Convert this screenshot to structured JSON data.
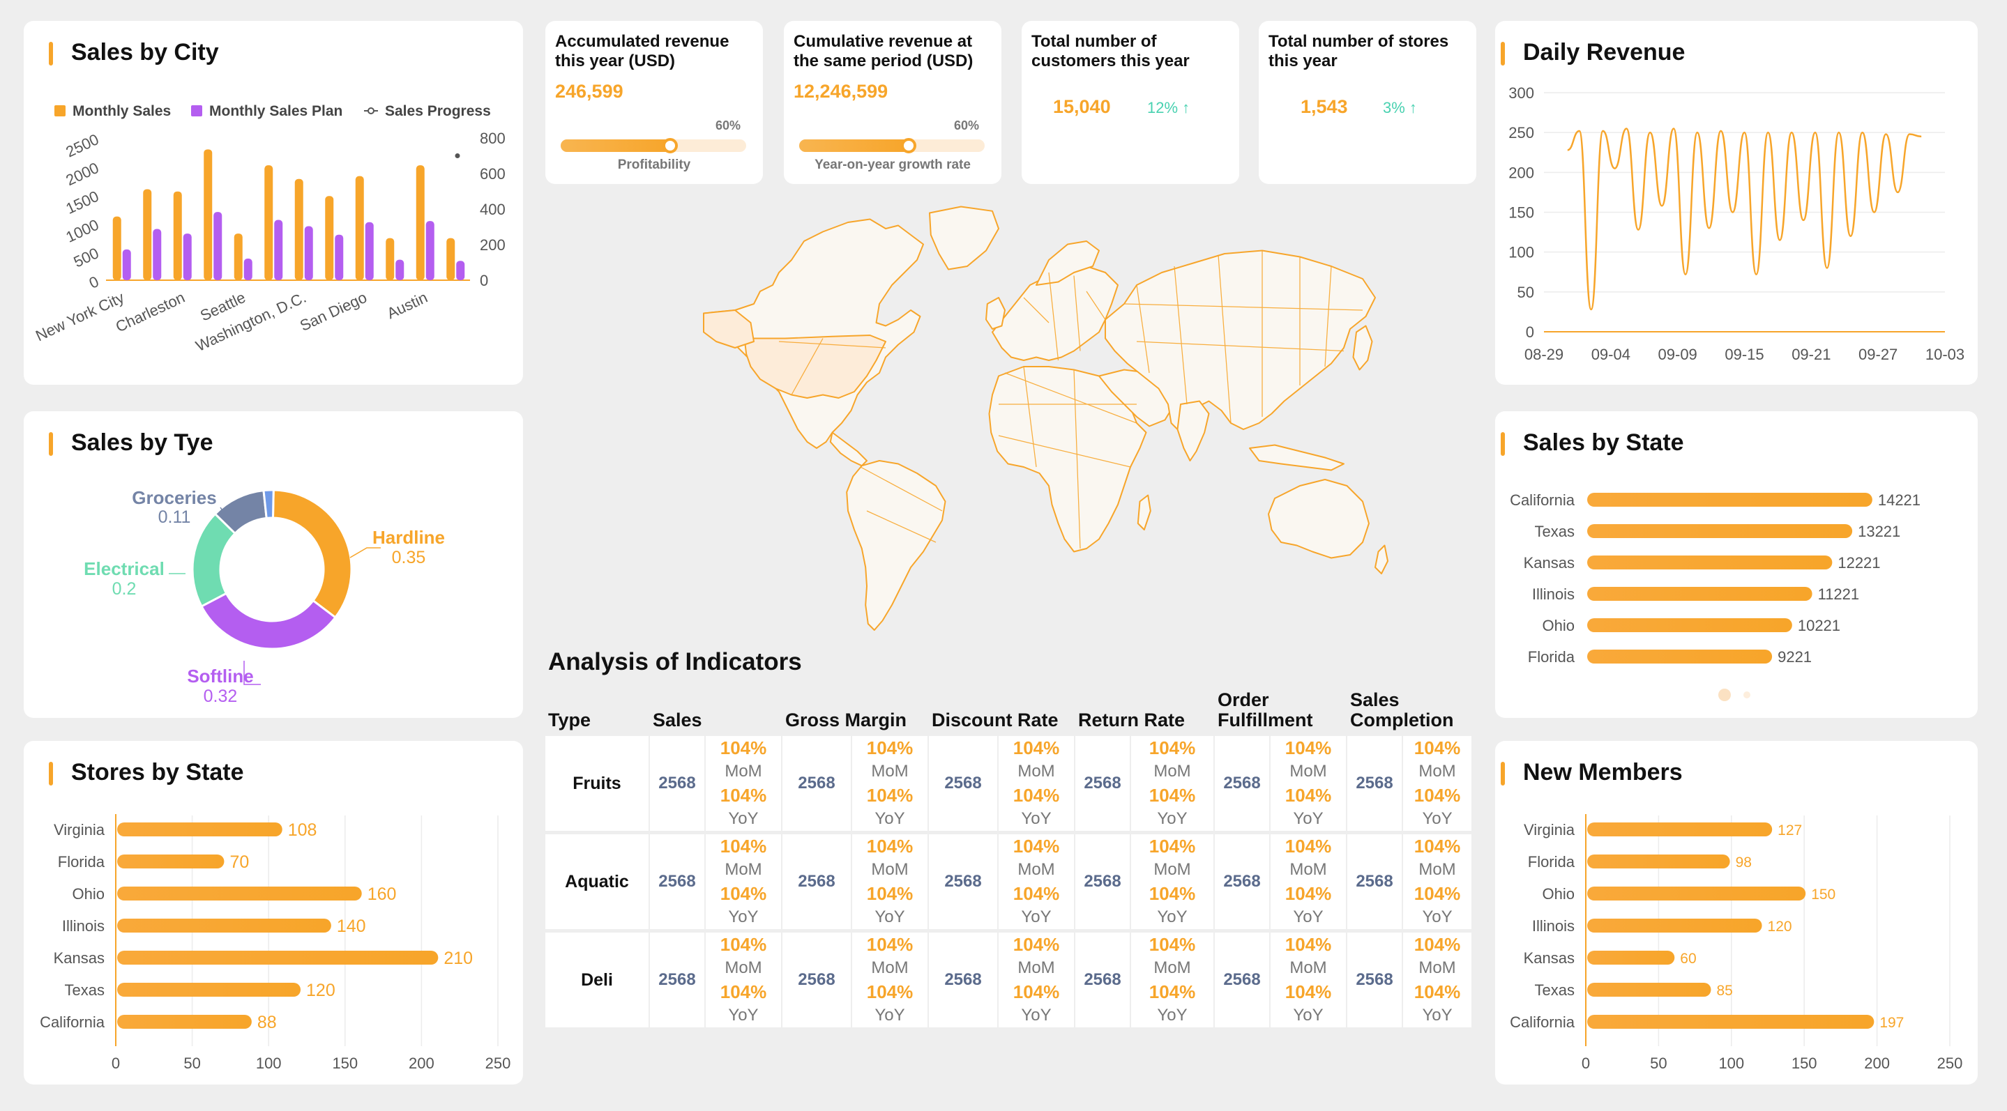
{
  "colors": {
    "accent": "#f7a52a",
    "plan": "#b45ef0",
    "teal": "#48d1b0",
    "slate": "#5b6b8c"
  },
  "sales_by_city": {
    "title": "Sales by City",
    "legend": {
      "monthly_sales": "Monthly Sales",
      "monthly_plan": "Monthly Sales Plan",
      "sales_progress": "Sales Progress"
    },
    "chart_data": {
      "type": "bar",
      "categories": [
        "New York City",
        "",
        "Charleston",
        "",
        "Seattle",
        "",
        "Washington, D.C.",
        "",
        "San Diego",
        "",
        "Austin",
        ""
      ],
      "x_tick_labels": [
        "New York City",
        "Charleston",
        "Seattle",
        "Washington, D.C.",
        "San Diego",
        "Austin"
      ],
      "series": [
        {
          "name": "Monthly Sales",
          "values": [
            1120,
            1600,
            1560,
            2300,
            820,
            2020,
            1780,
            1480,
            1830,
            740,
            2020,
            740
          ]
        },
        {
          "name": "Monthly Sales Plan",
          "values": [
            540,
            900,
            820,
            1200,
            380,
            1060,
            950,
            800,
            1020,
            360,
            1040,
            340
          ]
        }
      ],
      "y_left_ticks": [
        "0",
        "500",
        "1000",
        "1500",
        "2000",
        "2500"
      ],
      "y_right_ticks": [
        "0",
        "200",
        "400",
        "600",
        "800"
      ],
      "ylim": [
        0,
        2500
      ],
      "y2lim": [
        0,
        800
      ],
      "progress_point": 700
    }
  },
  "kpis": [
    {
      "title": "Accumulated revenue this year (USD)",
      "value": "246,599",
      "progress_pct": "60%",
      "progress_value": 0.6,
      "progress_label": "Profitability"
    },
    {
      "title": "Cumulative revenue at the same period (USD)",
      "value": "12,246,599",
      "progress_pct": "60%",
      "progress_value": 0.6,
      "progress_label": "Year-on-year growth rate"
    },
    {
      "title": "Total number of customers this year",
      "value": "15,040",
      "change": "12% ↑"
    },
    {
      "title": "Total number of stores this year",
      "value": "1,543",
      "change": "3% ↑"
    }
  ],
  "daily_revenue": {
    "title": "Daily Revenue",
    "chart_data": {
      "type": "line",
      "x_tick_labels": [
        "08-29",
        "09-04",
        "09-09",
        "09-15",
        "09-21",
        "09-27",
        "10-03"
      ],
      "y_tick_labels": [
        "0",
        "50",
        "100",
        "150",
        "200",
        "250",
        "300"
      ],
      "ylim": [
        0,
        300
      ],
      "xlim": [
        0,
        34
      ],
      "x": [
        2,
        3,
        4,
        5,
        6,
        7,
        8,
        9,
        10,
        11,
        12,
        13,
        14,
        15,
        16,
        17,
        18,
        19,
        20,
        21,
        22,
        23,
        24,
        25,
        26,
        27,
        28,
        29,
        30,
        31,
        32
      ],
      "values": [
        228,
        252,
        28,
        252,
        205,
        255,
        128,
        250,
        158,
        255,
        72,
        250,
        130,
        252,
        150,
        250,
        72,
        250,
        115,
        250,
        140,
        250,
        80,
        250,
        120,
        250,
        150,
        248,
        175,
        248,
        245
      ]
    }
  },
  "sales_by_type": {
    "title": "Sales by Tye",
    "chart_data": {
      "type": "pie",
      "labels": [
        "Hardline",
        "Softline",
        "Electrical",
        "Groceries",
        ""
      ],
      "values": [
        0.35,
        0.32,
        0.2,
        0.11,
        0.02
      ],
      "value_labels": [
        "0.35",
        "0.32",
        "0.2",
        "0.11",
        ""
      ],
      "colors": [
        "#f7a52a",
        "#b45ef0",
        "#6fdcb1",
        "#7484a6",
        "#6f9ae8"
      ]
    }
  },
  "map": {
    "name": "World map"
  },
  "analysis": {
    "title": "Analysis of Indicators",
    "headers": [
      "Type",
      "Sales",
      "Gross Margin",
      "Discount Rate",
      "Return Rate",
      "Order Fulfillment",
      "Sales Completion"
    ],
    "rows": [
      {
        "type": "Fruits",
        "value": "2568",
        "mom_pct": "104%",
        "mom": "MoM",
        "yoy_pct": "104%",
        "yoy": "YoY"
      },
      {
        "type": "Aquatic",
        "value": "2568",
        "mom_pct": "104%",
        "mom": "MoM",
        "yoy_pct": "104%",
        "yoy": "YoY"
      },
      {
        "type": "Deli",
        "value": "2568",
        "mom_pct": "104%",
        "mom": "MoM",
        "yoy_pct": "104%",
        "yoy": "YoY"
      }
    ]
  },
  "sales_by_state": {
    "title": "Sales by State",
    "chart_data": {
      "type": "bar",
      "orientation": "horizontal",
      "categories": [
        "California",
        "Texas",
        "Kansas",
        "Illinois",
        "Ohio",
        "Florida"
      ],
      "values": [
        14221,
        13221,
        12221,
        11221,
        10221,
        9221
      ],
      "value_labels": [
        "14221",
        "13221",
        "12221",
        "11221",
        "10221",
        "9221"
      ],
      "xlim": [
        0,
        16000
      ]
    }
  },
  "stores_by_state": {
    "title": "Stores by State",
    "chart_data": {
      "type": "bar",
      "orientation": "horizontal",
      "categories": [
        "Virginia",
        "Florida",
        "Ohio",
        "Illinois",
        "Kansas",
        "Texas",
        "California"
      ],
      "values": [
        108,
        70,
        160,
        140,
        210,
        120,
        88
      ],
      "value_labels": [
        "108",
        "70",
        "160",
        "140",
        "210",
        "120",
        "88"
      ],
      "x_tick_labels": [
        "0",
        "50",
        "100",
        "150",
        "200",
        "250"
      ],
      "xlim": [
        0,
        250
      ]
    }
  },
  "new_members": {
    "title": "New Members",
    "chart_data": {
      "type": "bar",
      "orientation": "horizontal",
      "categories": [
        "Virginia",
        "Florida",
        "Ohio",
        "Illinois",
        "Kansas",
        "Texas",
        "California"
      ],
      "values": [
        127,
        98,
        150,
        120,
        60,
        85,
        197
      ],
      "value_labels": [
        "127",
        "98",
        "150",
        "120",
        "60",
        "85",
        "197"
      ],
      "x_tick_labels": [
        "0",
        "50",
        "100",
        "150",
        "200",
        "250"
      ],
      "xlim": [
        0,
        250
      ]
    }
  }
}
